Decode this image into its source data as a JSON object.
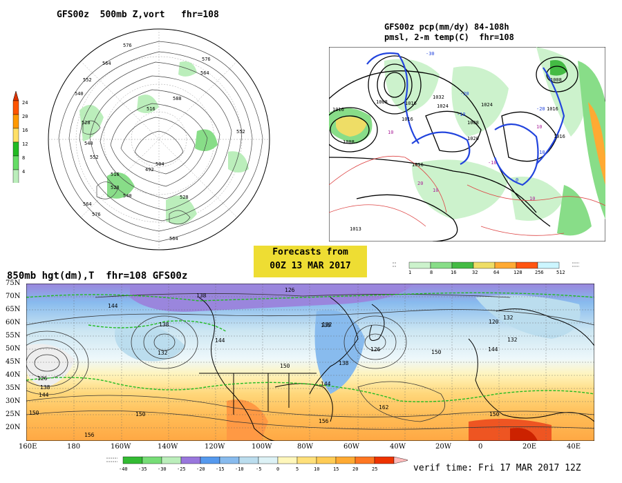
{
  "top_left": {
    "title": "GFS00z  500mb Z,vort   fhr=108",
    "colorbar_ticks": [
      "24",
      "20",
      "16",
      "12",
      "8",
      "4"
    ],
    "colorbar_colors": [
      "#ff5500",
      "#ff9900",
      "#ffe066",
      "#22bb22",
      "#66dd66",
      "#bbeebb"
    ],
    "contour_labels": [
      "576",
      "564",
      "552",
      "540",
      "528",
      "516",
      "504",
      "492",
      "576",
      "564",
      "588",
      "540",
      "552",
      "564",
      "528",
      "516",
      "540",
      "528",
      "576",
      "564",
      "552"
    ]
  },
  "top_right": {
    "title_line1": "GFS00z pcp(mm/dy) 84-108h",
    "title_line2": "pmsl, 2-m temp(C)  fhr=108",
    "pressure_labels": [
      "1016",
      "1008",
      "1016",
      "1024",
      "1032",
      "1020",
      "1024",
      "1008",
      "1016",
      "1008",
      "1016",
      "1016",
      "1016",
      "1013",
      "1024"
    ],
    "temp_labels": [
      "-30",
      "-20",
      "-10",
      "-10",
      "0",
      "10",
      "20",
      "-10",
      "-20",
      "10",
      "10",
      "10"
    ],
    "precip_ticks": [
      "1",
      "8",
      "16",
      "32",
      "64",
      "128",
      "256",
      "512"
    ],
    "precip_colors": [
      "#ccf2cc",
      "#88dd88",
      "#44bb44",
      "#eedd66",
      "#ffaa33",
      "#ff5511",
      "#ccf6ff"
    ]
  },
  "badge": {
    "line1": "Forecasts from",
    "line2": "00Z 13 MAR 2017"
  },
  "bottom": {
    "title": "850mb hgt(dm),T  fhr=108 GFS00z",
    "lat_labels": [
      "75N",
      "70N",
      "65N",
      "60N",
      "55N",
      "50N",
      "45N",
      "40N",
      "35N",
      "30N",
      "25N",
      "20N"
    ],
    "lon_labels": [
      "160E",
      "180",
      "160W",
      "140W",
      "120W",
      "100W",
      "80W",
      "60W",
      "40W",
      "20W",
      "0",
      "20E",
      "40E"
    ],
    "height_labels": [
      "126",
      "138",
      "144",
      "138",
      "132",
      "126",
      "144",
      "138",
      "132",
      "144",
      "150",
      "132",
      "138",
      "144",
      "150",
      "138",
      "144",
      "162",
      "150",
      "156",
      "150",
      "156",
      "150",
      "126",
      "120",
      "132"
    ],
    "temp_ticks": [
      "-40",
      "-35",
      "-30",
      "-25",
      "-20",
      "-15",
      "-10",
      "-5",
      "0",
      "5",
      "10",
      "15",
      "20",
      "25"
    ],
    "temp_colors": [
      "#33bb33",
      "#77dd77",
      "#bbeebb",
      "#9977dd",
      "#5599ee",
      "#88bbee",
      "#bbddee",
      "#ddf2f6",
      "#fff7bb",
      "#ffe07a",
      "#ffcc55",
      "#ffaa33",
      "#ff7722",
      "#ee3300"
    ],
    "verif": "verif time: Fri 17 MAR 2017 12Z"
  }
}
